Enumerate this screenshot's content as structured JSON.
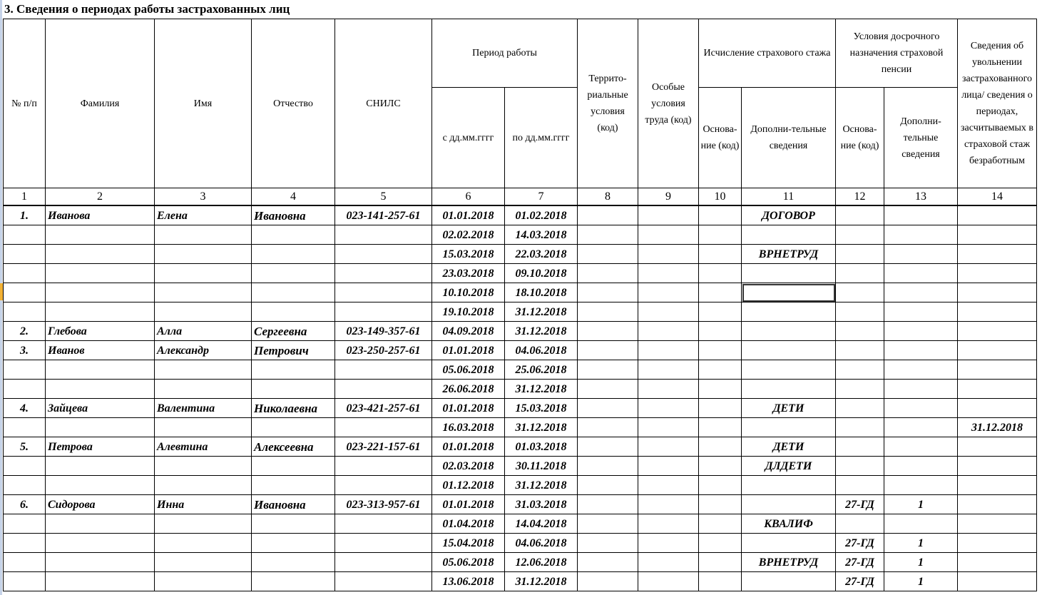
{
  "title": "3. Сведения о периодах работы застрахованных лиц",
  "headers": {
    "c1": "№ п/п",
    "c2": "Фамилия",
    "c3": "Имя",
    "c4": "Отчество",
    "c5": "СНИЛС",
    "period": "Период работы",
    "c6": "с дд.мм.гггг",
    "c7": "по дд.мм.гггг",
    "c8": "Террито-риальные условия (код)",
    "c9": "Особые условия труда (код)",
    "stazh": "Исчисление страхового стажа",
    "c10": "Основа-ние (код)",
    "c11": "Дополни-тельные сведения",
    "early": "Условия досрочного назначения страховой пенсии",
    "c12": "Основа-ние (код)",
    "c13": "Дополни-тельные сведения",
    "c14": "Сведения об увольнении застрахованного лица/ сведения о периодах, засчитываемых в страховой стаж безработным"
  },
  "numbers": [
    "1",
    "2",
    "3",
    "4",
    "5",
    "6",
    "7",
    "8",
    "9",
    "10",
    "11",
    "12",
    "13",
    "14"
  ],
  "rows": [
    [
      "1.",
      "Иванова",
      "Елена",
      "Ивановна",
      "023-141-257-61",
      "01.01.2018",
      "01.02.2018",
      "",
      "",
      "",
      "ДОГОВОР",
      "",
      "",
      ""
    ],
    [
      "",
      "",
      "",
      "",
      "",
      "02.02.2018",
      "14.03.2018",
      "",
      "",
      "",
      "",
      "",
      "",
      ""
    ],
    [
      "",
      "",
      "",
      "",
      "",
      "15.03.2018",
      "22.03.2018",
      "",
      "",
      "",
      "ВРНЕТРУД",
      "",
      "",
      ""
    ],
    [
      "",
      "",
      "",
      "",
      "",
      "23.03.2018",
      "09.10.2018",
      "",
      "",
      "",
      "",
      "",
      "",
      ""
    ],
    [
      "",
      "",
      "",
      "",
      "",
      "10.10.2018",
      "18.10.2018",
      "",
      "",
      "",
      "",
      "",
      "",
      ""
    ],
    [
      "",
      "",
      "",
      "",
      "",
      "19.10.2018",
      "31.12.2018",
      "",
      "",
      "",
      "",
      "",
      "",
      ""
    ],
    [
      "2.",
      "Глебова",
      "Алла",
      "Сергеевна",
      "023-149-357-61",
      "04.09.2018",
      "31.12.2018",
      "",
      "",
      "",
      "",
      "",
      "",
      ""
    ],
    [
      "3.",
      "Иванов",
      "Александр",
      "Петрович",
      "023-250-257-61",
      "01.01.2018",
      "04.06.2018",
      "",
      "",
      "",
      "",
      "",
      "",
      ""
    ],
    [
      "",
      "",
      "",
      "",
      "",
      "05.06.2018",
      "25.06.2018",
      "",
      "",
      "",
      "",
      "",
      "",
      ""
    ],
    [
      "",
      "",
      "",
      "",
      "",
      "26.06.2018",
      "31.12.2018",
      "",
      "",
      "",
      "",
      "",
      "",
      ""
    ],
    [
      "4.",
      "Зайцева",
      "Валентина",
      "Николаевна",
      "023-421-257-61",
      "01.01.2018",
      "15.03.2018",
      "",
      "",
      "",
      "ДЕТИ",
      "",
      "",
      ""
    ],
    [
      "",
      "",
      "",
      "",
      "",
      "16.03.2018",
      "31.12.2018",
      "",
      "",
      "",
      "",
      "",
      "",
      "31.12.2018"
    ],
    [
      "5.",
      "Петрова",
      "Алевтина",
      "Алексеевна",
      "023-221-157-61",
      "01.01.2018",
      "01.03.2018",
      "",
      "",
      "",
      "ДЕТИ",
      "",
      "",
      ""
    ],
    [
      "",
      "",
      "",
      "",
      "",
      "02.03.2018",
      "30.11.2018",
      "",
      "",
      "",
      "ДЛДЕТИ",
      "",
      "",
      ""
    ],
    [
      "",
      "",
      "",
      "",
      "",
      "01.12.2018",
      "31.12.2018",
      "",
      "",
      "",
      "",
      "",
      "",
      ""
    ],
    [
      "6.",
      "Сидорова",
      "Инна",
      "Ивановна",
      "023-313-957-61",
      "01.01.2018",
      "31.03.2018",
      "",
      "",
      "",
      "",
      "27-ГД",
      "1",
      ""
    ],
    [
      "",
      "",
      "",
      "",
      "",
      "01.04.2018",
      "14.04.2018",
      "",
      "",
      "",
      "КВАЛИФ",
      "",
      "",
      ""
    ],
    [
      "",
      "",
      "",
      "",
      "",
      "15.04.2018",
      "04.06.2018",
      "",
      "",
      "",
      "",
      "27-ГД",
      "1",
      ""
    ],
    [
      "",
      "",
      "",
      "",
      "",
      "05.06.2018",
      "12.06.2018",
      "",
      "",
      "",
      "ВРНЕТРУД",
      "27-ГД",
      "1",
      ""
    ],
    [
      "",
      "",
      "",
      "",
      "",
      "13.06.2018",
      "31.12.2018",
      "",
      "",
      "",
      "",
      "27-ГД",
      "1",
      ""
    ]
  ]
}
